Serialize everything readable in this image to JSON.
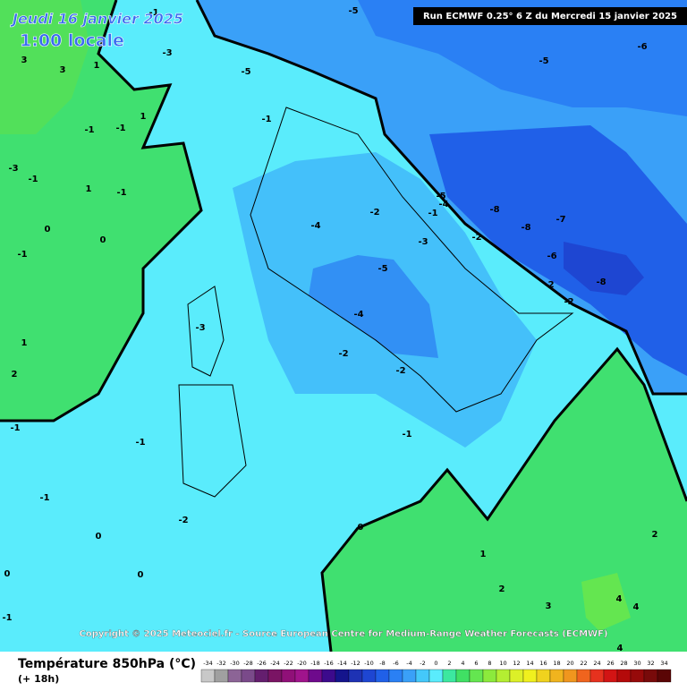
{
  "header": {
    "date": "Jeudi 16 janvier 2025",
    "time": "1:00 locale",
    "run": "Run ECMWF 0.25° 6 Z du Mercredi 15 janvier 2025"
  },
  "copyright": "Copyright © 2025 Meteociel.fr - Source European Centre for Medium-Range Weather Forecasts (ECMWF)",
  "legend": {
    "title": "Température 850hPa (°C)",
    "lead": "(+ 18h)",
    "scale": [
      -34,
      -32,
      -30,
      -28,
      -26,
      -24,
      -22,
      -20,
      -18,
      -16,
      -14,
      -12,
      -10,
      -8,
      -6,
      -4,
      -2,
      0,
      2,
      4,
      6,
      8,
      10,
      12,
      14,
      16,
      18,
      20,
      22,
      24,
      26,
      28,
      30,
      32,
      34
    ],
    "colors": [
      "#c8c8c8",
      "#a0a0a0",
      "#8c6496",
      "#7a4a8a",
      "#641e6e",
      "#7a1464",
      "#901078",
      "#a0148c",
      "#6e0a8c",
      "#3c0a8c",
      "#14148c",
      "#1e32b4",
      "#1e46d2",
      "#2060e8",
      "#2a80f4",
      "#3aa0f8",
      "#44c8fa",
      "#5aecfc",
      "#3ce8a0",
      "#40e064",
      "#64e650",
      "#8cea3c",
      "#b4ee32",
      "#dcf028",
      "#f0f01e",
      "#f0d21e",
      "#f0b41e",
      "#f0961e",
      "#f0641e",
      "#e6321e",
      "#d21414",
      "#b40a0a",
      "#960a0a",
      "#780a0a",
      "#5a0505"
    ]
  },
  "contour_labels": [
    3,
    3,
    1,
    -1,
    -3,
    -5,
    -5,
    -5,
    -6,
    1,
    -1,
    -1,
    -1,
    -3,
    -1,
    1,
    -1,
    0,
    0,
    -1,
    -4,
    -2,
    -5,
    -4,
    -1,
    -3,
    -2,
    -8,
    -8,
    -7,
    -6,
    -5,
    -2,
    -2,
    -8,
    -4,
    -3,
    1,
    -2,
    -2,
    2,
    -1,
    -1,
    -1,
    -1,
    -2,
    0,
    0,
    1,
    2,
    0,
    0,
    2,
    3,
    4,
    4,
    -1,
    4
  ]
}
